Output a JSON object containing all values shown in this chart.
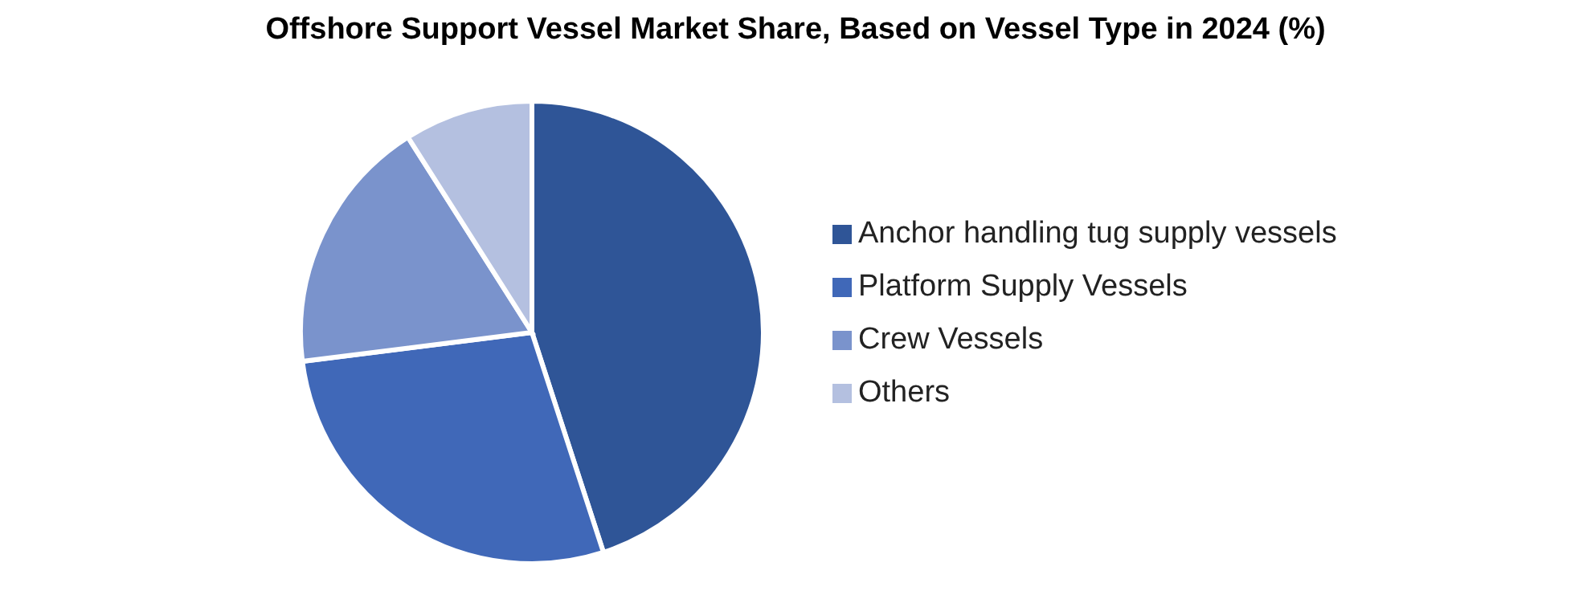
{
  "chart_data": {
    "type": "pie",
    "title": "Offshore Support Vessel Market Share, Based on Vessel Type in 2024 (%)",
    "categories": [
      "Anchor handling tug supply vessels",
      "Platform Supply Vessels",
      "Crew Vessels",
      "Others"
    ],
    "values": [
      45,
      28,
      18,
      9
    ],
    "colors": [
      "#2f5597",
      "#4068b8",
      "#7a93cc",
      "#b4c0e0"
    ],
    "legend": "right"
  }
}
